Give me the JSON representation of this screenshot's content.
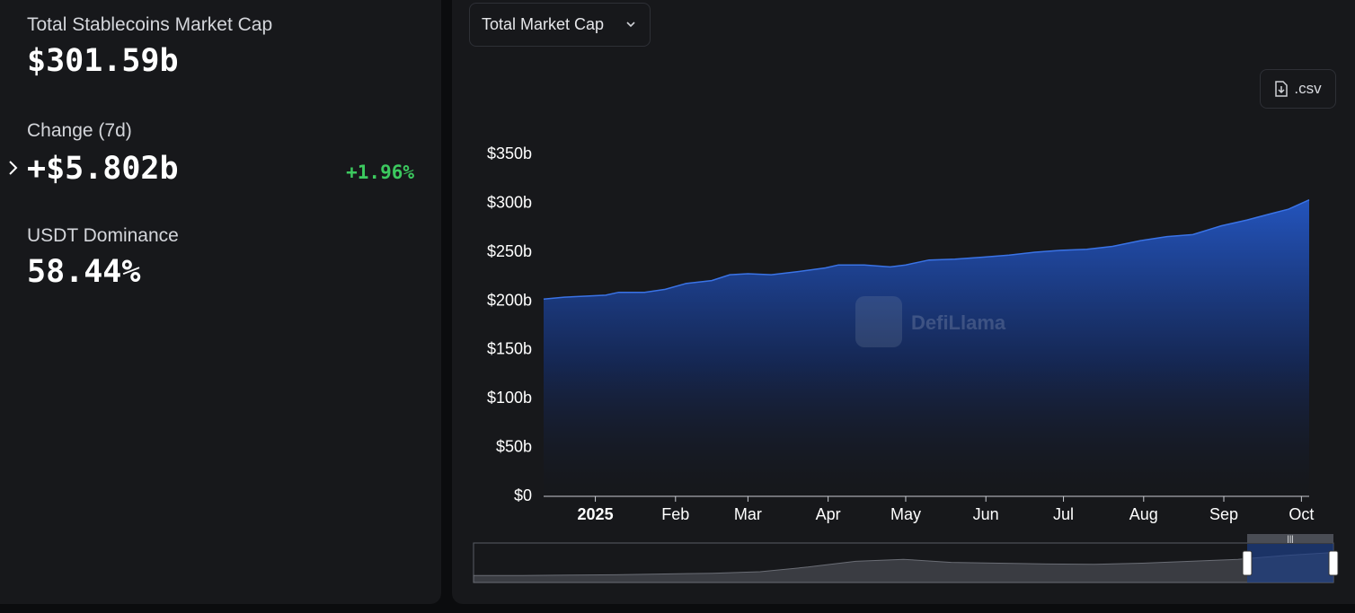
{
  "stats": {
    "market_cap_label": "Total Stablecoins Market Cap",
    "market_cap_value": "$301.59b",
    "change_label": "Change (7d)",
    "change_value": "+$5.802b",
    "change_pct": "+1.96%",
    "dominance_label": "USDT Dominance",
    "dominance_value": "58.44%"
  },
  "controls": {
    "dropdown_label": "Total Market Cap",
    "csv_label": ".csv"
  },
  "watermark": "DefiLlama",
  "colors": {
    "accent": "#2a63d8",
    "positive": "#3cc95f",
    "panel": "#17181b"
  },
  "chart_data": {
    "type": "area",
    "title": "",
    "xlabel": "",
    "ylabel": "",
    "ylim": [
      0,
      350
    ],
    "y_unit": "billions USD",
    "yticks": [
      "$0",
      "$50b",
      "$100b",
      "$150b",
      "$200b",
      "$250b",
      "$300b",
      "$350b"
    ],
    "yticks_values": [
      0,
      50,
      100,
      150,
      200,
      250,
      300,
      350
    ],
    "xticks": [
      "2025",
      "Feb",
      "Mar",
      "Apr",
      "May",
      "Jun",
      "Jul",
      "Aug",
      "Sep",
      "Oct"
    ],
    "xticks_dates": [
      "2025-01-01",
      "2025-02-01",
      "2025-03-01",
      "2025-04-01",
      "2025-05-01",
      "2025-06-01",
      "2025-07-01",
      "2025-08-01",
      "2025-09-01",
      "2025-10-01"
    ],
    "x_range": [
      "2024-12-12",
      "2025-10-04"
    ],
    "grid": false,
    "series": [
      {
        "values": [
          [
            "2024-12-12",
            200
          ],
          [
            "2024-12-20",
            202
          ],
          [
            "2024-12-28",
            203
          ],
          [
            "2025-01-05",
            204
          ],
          [
            "2025-01-10",
            207
          ],
          [
            "2025-01-20",
            207
          ],
          [
            "2025-01-28",
            210
          ],
          [
            "2025-02-05",
            216
          ],
          [
            "2025-02-15",
            219
          ],
          [
            "2025-02-22",
            225
          ],
          [
            "2025-03-01",
            226
          ],
          [
            "2025-03-10",
            225
          ],
          [
            "2025-03-20",
            228
          ],
          [
            "2025-03-31",
            232
          ],
          [
            "2025-04-05",
            235
          ],
          [
            "2025-04-15",
            235
          ],
          [
            "2025-04-25",
            233
          ],
          [
            "2025-05-01",
            235
          ],
          [
            "2025-05-10",
            240
          ],
          [
            "2025-05-20",
            241
          ],
          [
            "2025-05-31",
            243
          ],
          [
            "2025-06-10",
            245
          ],
          [
            "2025-06-20",
            248
          ],
          [
            "2025-06-30",
            250
          ],
          [
            "2025-07-10",
            251
          ],
          [
            "2025-07-20",
            254
          ],
          [
            "2025-07-31",
            260
          ],
          [
            "2025-08-10",
            264
          ],
          [
            "2025-08-20",
            266
          ],
          [
            "2025-08-31",
            275
          ],
          [
            "2025-09-10",
            281
          ],
          [
            "2025-09-20",
            288
          ],
          [
            "2025-09-26",
            292
          ],
          [
            "2025-10-04",
            301.59
          ]
        ]
      }
    ]
  }
}
